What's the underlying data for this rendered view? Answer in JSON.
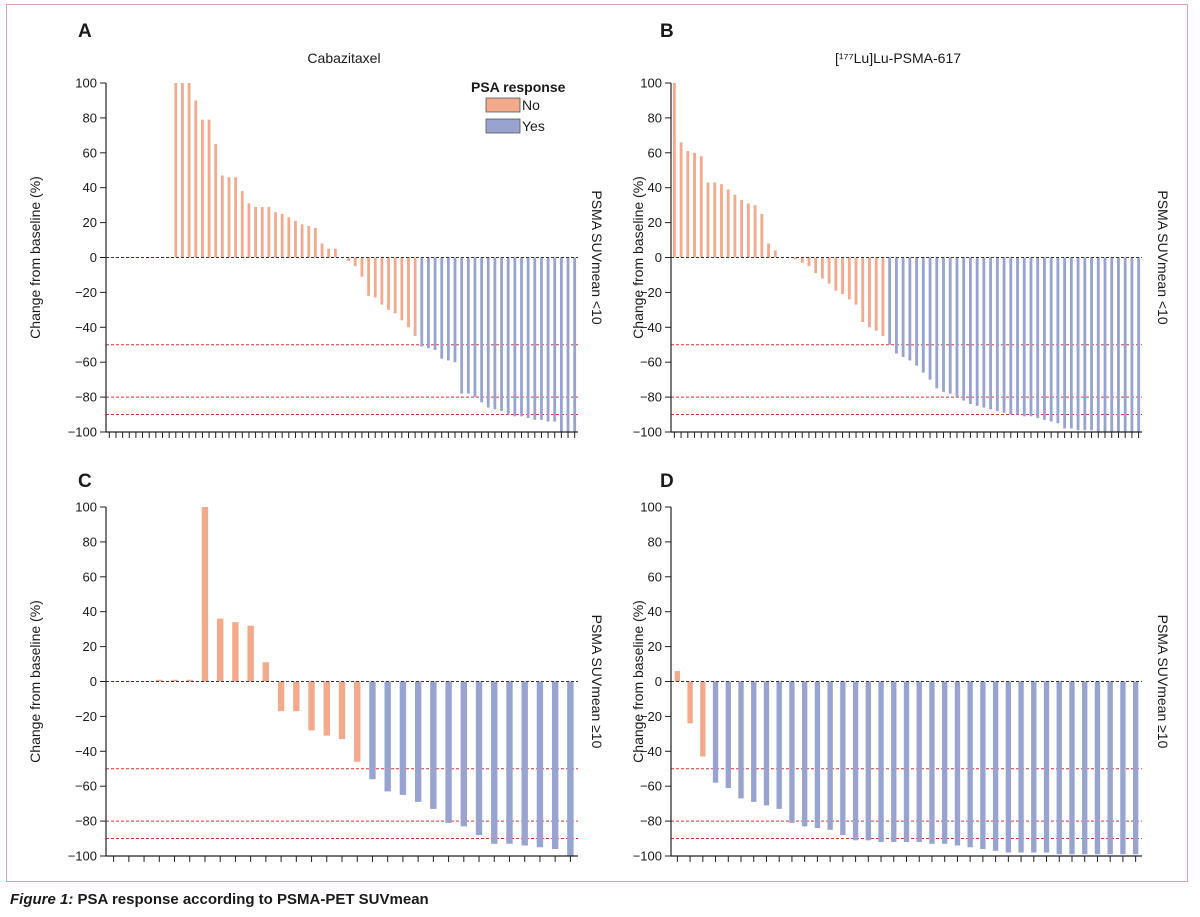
{
  "caption": {
    "label": "Figure 1:",
    "text": "PSA response according to PSMA-PET SUVmean"
  },
  "legend": {
    "title": "PSA response",
    "items": [
      {
        "label": "No",
        "color": "#f2a98c"
      },
      {
        "label": "Yes",
        "color": "#98a4cf"
      }
    ]
  },
  "colors": {
    "no": "#f2a98c",
    "yes": "#98a4cf",
    "threshold": "#d93030",
    "axis": "#222222"
  },
  "chart_data": [
    {
      "panel": "A",
      "type": "bar",
      "title": "Cabazitaxel",
      "ylabel": "Change from baseline (%)",
      "side_label": "PSMA SUVmean <10",
      "ylim": [
        -100,
        100
      ],
      "yticks": [
        100,
        80,
        60,
        40,
        20,
        0,
        -20,
        -40,
        -60,
        -80,
        -100
      ],
      "thresholds": [
        -50,
        -80,
        -90
      ],
      "values": [
        0,
        0,
        0,
        0,
        0,
        0,
        0,
        0,
        0,
        0,
        100,
        100,
        100,
        90,
        79,
        79,
        65,
        47,
        46,
        46,
        38,
        31,
        29,
        29,
        29,
        26,
        25,
        23,
        21,
        19,
        18,
        17,
        8,
        5,
        5,
        0,
        -2,
        -5,
        -11,
        -22,
        -23,
        -27,
        -30,
        -32,
        -36,
        -40,
        -45,
        -51,
        -52,
        -53,
        -58,
        -59,
        -60,
        -78,
        -78,
        -80,
        -83,
        -86,
        -87,
        -88,
        -90,
        -91,
        -91,
        -92,
        -93,
        -93,
        -94,
        -94,
        -100,
        -100,
        -100
      ],
      "response": [
        "No",
        "No",
        "No",
        "No",
        "No",
        "No",
        "No",
        "No",
        "No",
        "No",
        "No",
        "No",
        "No",
        "No",
        "No",
        "No",
        "No",
        "No",
        "No",
        "No",
        "No",
        "No",
        "No",
        "No",
        "No",
        "No",
        "No",
        "No",
        "No",
        "No",
        "No",
        "No",
        "No",
        "No",
        "No",
        "No",
        "No",
        "No",
        "No",
        "No",
        "No",
        "No",
        "No",
        "No",
        "No",
        "No",
        "No",
        "Yes",
        "Yes",
        "Yes",
        "Yes",
        "Yes",
        "Yes",
        "Yes",
        "Yes",
        "Yes",
        "Yes",
        "Yes",
        "Yes",
        "Yes",
        "Yes",
        "Yes",
        "Yes",
        "Yes",
        "Yes",
        "Yes",
        "Yes",
        "Yes",
        "Yes",
        "Yes",
        "Yes"
      ]
    },
    {
      "panel": "B",
      "type": "bar",
      "title": "[¹⁷⁷Lu]Lu-PSMA-617",
      "ylabel": "Change from baseline (%)",
      "side_label": "PSMA SUVmean <10",
      "ylim": [
        -100,
        100
      ],
      "yticks": [
        100,
        80,
        60,
        40,
        20,
        0,
        -20,
        -40,
        -60,
        -80,
        -100
      ],
      "thresholds": [
        -50,
        -80,
        -90
      ],
      "values": [
        100,
        66,
        61,
        60,
        58,
        43,
        43,
        42,
        39,
        36,
        33,
        31,
        30,
        25,
        8,
        4,
        0,
        0,
        -1,
        -3,
        -5,
        -9,
        -12,
        -15,
        -19,
        -21,
        -24,
        -27,
        -37,
        -40,
        -42,
        -45,
        -50,
        -55,
        -57,
        -59,
        -62,
        -66,
        -70,
        -75,
        -77,
        -78,
        -80,
        -82,
        -84,
        -85,
        -86,
        -87,
        -88,
        -89,
        -90,
        -90,
        -91,
        -91,
        -92,
        -93,
        -94,
        -95,
        -98,
        -98,
        -99,
        -99,
        -99,
        -100,
        -100,
        -100,
        -100,
        -100,
        -100,
        -100
      ],
      "response": [
        "No",
        "No",
        "No",
        "No",
        "No",
        "No",
        "No",
        "No",
        "No",
        "No",
        "No",
        "No",
        "No",
        "No",
        "No",
        "No",
        "No",
        "No",
        "No",
        "No",
        "No",
        "No",
        "No",
        "No",
        "No",
        "No",
        "No",
        "No",
        "No",
        "No",
        "No",
        "No",
        "Yes",
        "Yes",
        "Yes",
        "Yes",
        "Yes",
        "Yes",
        "Yes",
        "Yes",
        "Yes",
        "Yes",
        "Yes",
        "Yes",
        "Yes",
        "Yes",
        "Yes",
        "Yes",
        "Yes",
        "Yes",
        "Yes",
        "Yes",
        "Yes",
        "Yes",
        "Yes",
        "Yes",
        "Yes",
        "Yes",
        "Yes",
        "Yes",
        "Yes",
        "Yes",
        "Yes",
        "Yes",
        "Yes",
        "Yes",
        "Yes",
        "Yes",
        "Yes",
        "Yes"
      ]
    },
    {
      "panel": "C",
      "type": "bar",
      "title": "",
      "ylabel": "Change from baseline (%)",
      "side_label": "PSMA SUVmean ≥10",
      "ylim": [
        -100,
        100
      ],
      "yticks": [
        100,
        80,
        60,
        40,
        20,
        0,
        -20,
        -40,
        -60,
        -80,
        -100
      ],
      "thresholds": [
        -50,
        -80,
        -90
      ],
      "values": [
        0,
        0,
        0,
        1,
        1,
        1,
        100,
        36,
        34,
        32,
        11,
        -17,
        -17,
        -28,
        -31,
        -33,
        -46,
        -56,
        -63,
        -65,
        -69,
        -73,
        -81,
        -83,
        -88,
        -93,
        -93,
        -94,
        -95,
        -96,
        -100
      ],
      "response": [
        "No",
        "No",
        "No",
        "No",
        "No",
        "No",
        "No",
        "No",
        "No",
        "No",
        "No",
        "No",
        "No",
        "No",
        "No",
        "No",
        "No",
        "Yes",
        "Yes",
        "Yes",
        "Yes",
        "Yes",
        "Yes",
        "Yes",
        "Yes",
        "Yes",
        "Yes",
        "Yes",
        "Yes",
        "Yes",
        "Yes"
      ]
    },
    {
      "panel": "D",
      "type": "bar",
      "title": "",
      "ylabel": "Change from baseline (%)",
      "side_label": "PSMA SUVmean ≥10",
      "ylim": [
        -100,
        100
      ],
      "yticks": [
        100,
        80,
        60,
        40,
        20,
        0,
        -20,
        -40,
        -60,
        -80,
        -100
      ],
      "thresholds": [
        -50,
        -80,
        -90
      ],
      "values": [
        6,
        -24,
        -43,
        -58,
        -61,
        -67,
        -69,
        -71,
        -73,
        -81,
        -83,
        -84,
        -85,
        -88,
        -91,
        -91,
        -92,
        -92,
        -92,
        -92,
        -93,
        -93,
        -94,
        -95,
        -96,
        -97,
        -98,
        -98,
        -98,
        -98,
        -99,
        -99,
        -99,
        -99,
        -99,
        -99,
        -99
      ],
      "response": [
        "No",
        "No",
        "No",
        "Yes",
        "Yes",
        "Yes",
        "Yes",
        "Yes",
        "Yes",
        "Yes",
        "Yes",
        "Yes",
        "Yes",
        "Yes",
        "Yes",
        "Yes",
        "Yes",
        "Yes",
        "Yes",
        "Yes",
        "Yes",
        "Yes",
        "Yes",
        "Yes",
        "Yes",
        "Yes",
        "Yes",
        "Yes",
        "Yes",
        "Yes",
        "Yes",
        "Yes",
        "Yes",
        "Yes",
        "Yes",
        "Yes",
        "Yes"
      ]
    }
  ]
}
